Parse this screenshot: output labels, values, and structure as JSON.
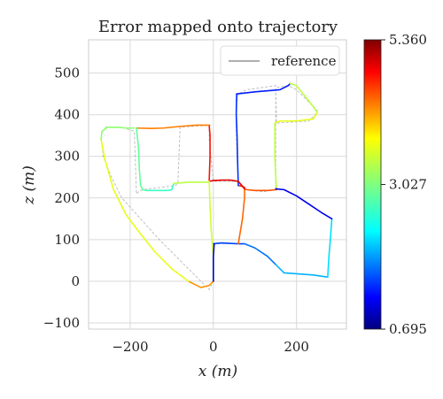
{
  "chart_data": {
    "type": "line",
    "title": "Error mapped onto trajectory",
    "xlabel": "x (m)",
    "ylabel": "z (m)",
    "xlim": [
      -300,
      320
    ],
    "ylim": [
      -115,
      580
    ],
    "xticks": [
      -200,
      0,
      200
    ],
    "xtick_labels": [
      "−200",
      "0",
      "200"
    ],
    "yticks": [
      -100,
      0,
      100,
      200,
      300,
      400,
      500
    ],
    "ytick_labels": [
      "−100",
      "0",
      "100",
      "200",
      "300",
      "400",
      "500"
    ],
    "grid": true,
    "legend": {
      "position": "top-right",
      "entries": [
        "reference"
      ]
    },
    "colorbar": {
      "min": 0.695,
      "max": 5.36,
      "tick_values": [
        0.695,
        3.027,
        5.36
      ],
      "tick_labels": [
        "0.695",
        "3.027",
        "5.360"
      ],
      "colormap": "jet"
    },
    "reference_series": {
      "name": "reference",
      "color": "#7f7f7f",
      "x": [
        0,
        20,
        60,
        70,
        75,
        75,
        60,
        55,
        55,
        58,
        60,
        80,
        150,
        150,
        152,
        230,
        245,
        250,
        200,
        180,
        150,
        150,
        120,
        80,
        60,
        0,
        -10,
        -10,
        -5,
        -80,
        -85,
        -90,
        -170,
        -180,
        -185,
        -190,
        -220,
        -260,
        -270,
        -265,
        -245,
        -220,
        -175,
        -130,
        -90,
        -60,
        -35,
        -10,
        0,
        0
      ],
      "y": [
        90,
        90,
        90,
        150,
        200,
        225,
        230,
        350,
        420,
        440,
        450,
        460,
        470,
        470,
        380,
        385,
        400,
        410,
        460,
        470,
        465,
        220,
        215,
        220,
        240,
        240,
        340,
        375,
        375,
        370,
        240,
        230,
        220,
        215,
        210,
        360,
        370,
        370,
        350,
        300,
        250,
        200,
        150,
        100,
        60,
        30,
        5,
        -20,
        0,
        90
      ]
    },
    "trajectory": [
      {
        "x": [
          0,
          20,
          60,
          75
        ],
        "y": [
          90,
          92,
          90,
          90
        ],
        "error": 1.6
      },
      {
        "x": [
          60,
          70,
          75,
          75
        ],
        "y": [
          90,
          150,
          200,
          225
        ],
        "error": 4.3
      },
      {
        "x": [
          75,
          70,
          60
        ],
        "y": [
          225,
          228,
          230
        ],
        "error": 4.6
      },
      {
        "x": [
          60,
          58,
          57,
          55,
          56
        ],
        "y": [
          230,
          300,
          350,
          400,
          450
        ],
        "error": 1.5
      },
      {
        "x": [
          56,
          100,
          160,
          180,
          185
        ],
        "y": [
          450,
          455,
          460,
          470,
          475
        ],
        "error": 1.4
      },
      {
        "x": [
          185,
          200,
          220,
          240,
          250
        ],
        "y": [
          475,
          470,
          445,
          420,
          405
        ],
        "error": 3.3
      },
      {
        "x": [
          250,
          240,
          200,
          160,
          148
        ],
        "y": [
          405,
          390,
          385,
          385,
          380
        ],
        "error": 3.5
      },
      {
        "x": [
          148,
          148,
          150,
          152
        ],
        "y": [
          380,
          300,
          250,
          220
        ],
        "error": 3.3
      },
      {
        "x": [
          152,
          130,
          100,
          80,
          75
        ],
        "y": [
          220,
          218,
          218,
          220,
          222
        ],
        "error": 4.4
      },
      {
        "x": [
          75,
          60,
          40,
          20,
          0,
          -10
        ],
        "y": [
          222,
          240,
          243,
          243,
          242,
          240
        ],
        "error": 4.9
      },
      {
        "x": [
          -10,
          -8,
          -8,
          -10
        ],
        "y": [
          240,
          300,
          350,
          375
        ],
        "error": 4.7
      },
      {
        "x": [
          -10,
          -40,
          -80,
          -120,
          -150,
          -185
        ],
        "y": [
          375,
          375,
          372,
          368,
          367,
          368
        ],
        "error": 4.2
      },
      {
        "x": [
          -185,
          -180,
          -178,
          -175,
          -170,
          -160
        ],
        "y": [
          368,
          320,
          270,
          230,
          220,
          218
        ],
        "error": 2.9
      },
      {
        "x": [
          -160,
          -140,
          -110,
          -100,
          -95
        ],
        "y": [
          218,
          218,
          218,
          220,
          235
        ],
        "error": 2.7
      },
      {
        "x": [
          -95,
          -60,
          -30,
          -15,
          -10
        ],
        "y": [
          235,
          238,
          238,
          238,
          240
        ],
        "error": 3.3
      },
      {
        "x": [
          -10,
          -8,
          -5,
          0,
          0
        ],
        "y": [
          240,
          180,
          120,
          60,
          0
        ],
        "error": 3.4
      },
      {
        "x": [
          0,
          -10,
          -30,
          -60
        ],
        "y": [
          0,
          -10,
          -15,
          0
        ],
        "error": 4.1
      },
      {
        "x": [
          -60,
          -100,
          -140,
          -180,
          -210,
          -240,
          -260,
          -270
        ],
        "y": [
          0,
          30,
          70,
          120,
          160,
          220,
          290,
          340
        ],
        "error": 3.5
      },
      {
        "x": [
          -270,
          -268,
          -255,
          -230,
          -210,
          -190
        ],
        "y": [
          340,
          360,
          370,
          370,
          368,
          368
        ],
        "error": 3.1
      },
      {
        "x": [
          0,
          0,
          2
        ],
        "y": [
          0,
          60,
          90
        ],
        "error": 1.0
      },
      {
        "x": [
          75,
          100,
          130,
          150
        ],
        "y": [
          90,
          80,
          60,
          40
        ],
        "error": 1.8
      },
      {
        "x": [
          150,
          170,
          200,
          240,
          275
        ],
        "y": [
          40,
          20,
          18,
          15,
          10
        ],
        "error": 2.1
      },
      {
        "x": [
          275,
          278,
          282,
          285
        ],
        "y": [
          10,
          60,
          110,
          150
        ],
        "error": 2.3
      },
      {
        "x": [
          285,
          260,
          230,
          200,
          170,
          150
        ],
        "y": [
          150,
          165,
          185,
          205,
          220,
          222
        ],
        "error": 1.2
      }
    ]
  }
}
